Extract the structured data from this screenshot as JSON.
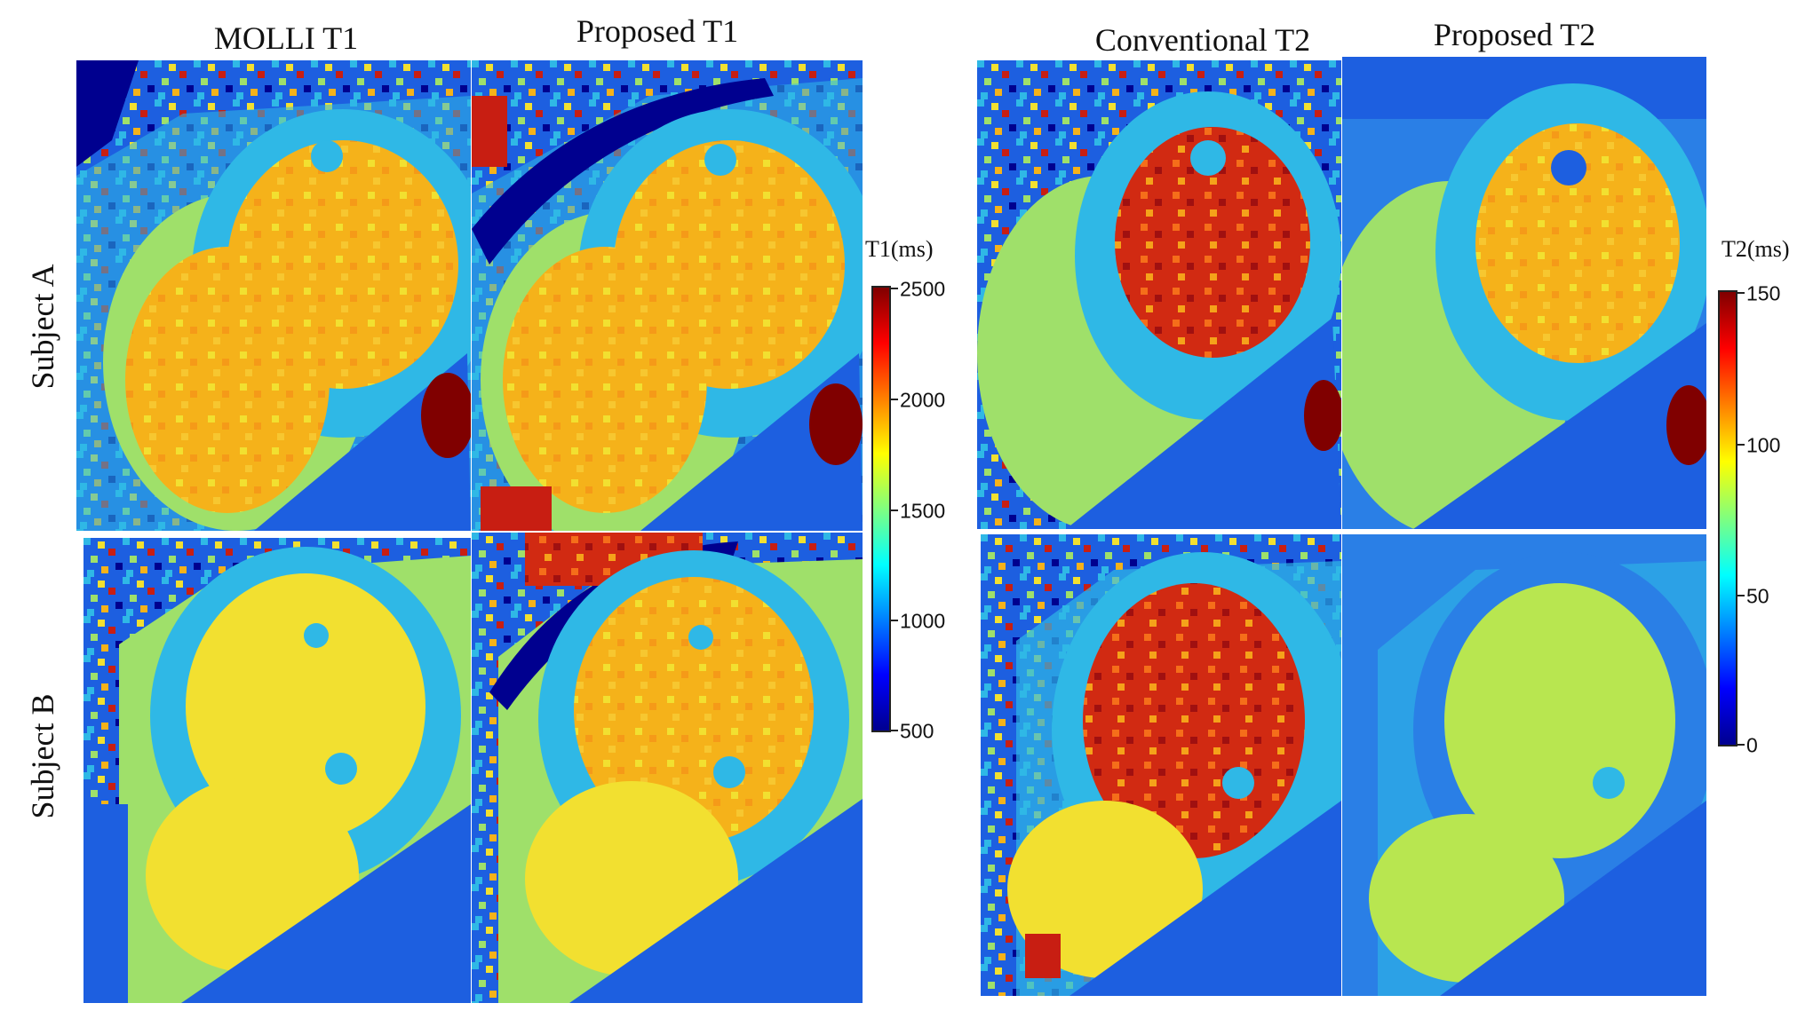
{
  "columns": {
    "molli_t1": "MOLLI  T1",
    "proposed_t1": "Proposed T1",
    "conventional_t2": "Conventional  T2",
    "proposed_t2": "Proposed T2"
  },
  "rows": {
    "subject_a": "Subject  A",
    "subject_b": "Subject  B"
  },
  "colorbar_t1": {
    "title": "T1(ms)",
    "ticks": [
      "2500",
      "2000",
      "1500",
      "1000",
      "500"
    ]
  },
  "colorbar_t2": {
    "title": "T2(ms)",
    "ticks": [
      "150",
      "100",
      "50",
      "0"
    ]
  },
  "colormap": "jet",
  "colors": {
    "background_blue": "#1d5fe0",
    "myocardium_cyan": "#2fb8e6",
    "tissue_green": "#9fe06a",
    "blood_orange": "#f5b21a",
    "blood_yellow": "#f2e030",
    "blood_red": "#c81e12",
    "dark_red": "#800000",
    "dark_blue": "#00008f"
  }
}
